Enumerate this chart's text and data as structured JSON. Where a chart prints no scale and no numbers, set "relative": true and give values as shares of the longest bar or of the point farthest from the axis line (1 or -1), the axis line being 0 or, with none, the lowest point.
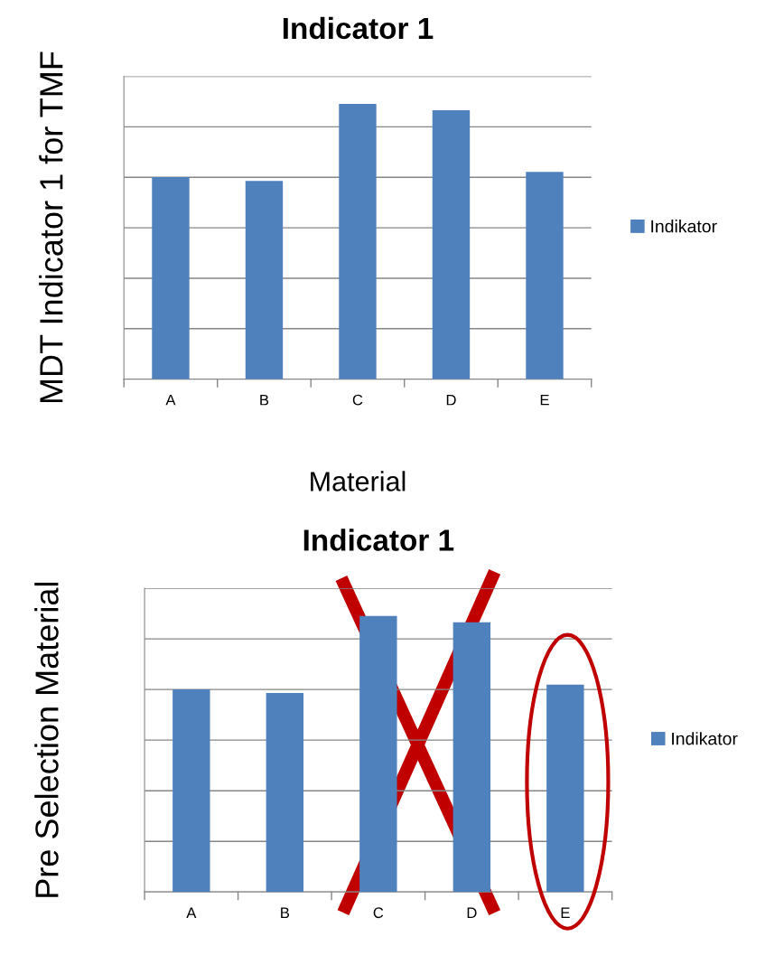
{
  "chart_data": [
    {
      "type": "bar",
      "title": "Indicator 1",
      "xlabel": "Material",
      "ylabel": "MDT Indicator 1 for TMF",
      "relative": true,
      "categories": [
        "A",
        "B",
        "C",
        "D",
        "E"
      ],
      "grid": "y",
      "legend": "right",
      "tick_labels": "x",
      "series": [
        {
          "name": "Indikator",
          "color": "#4f81bd",
          "values": [
            0.734,
            0.72,
            1,
            0.977,
            0.753
          ]
        }
      ]
    },
    {
      "type": "bar",
      "title": "Indicator 1",
      "ylabel": "Pre Selection Material",
      "relative": true,
      "categories": [
        "A",
        "B",
        "C",
        "D",
        "E"
      ],
      "grid": "y",
      "legend": "right",
      "tick_labels": "x",
      "series": [
        {
          "name": "Indikator",
          "color": "#4f81bd",
          "values": [
            0.734,
            0.721,
            1,
            0.977,
            0.751
          ]
        }
      ]
    }
  ]
}
